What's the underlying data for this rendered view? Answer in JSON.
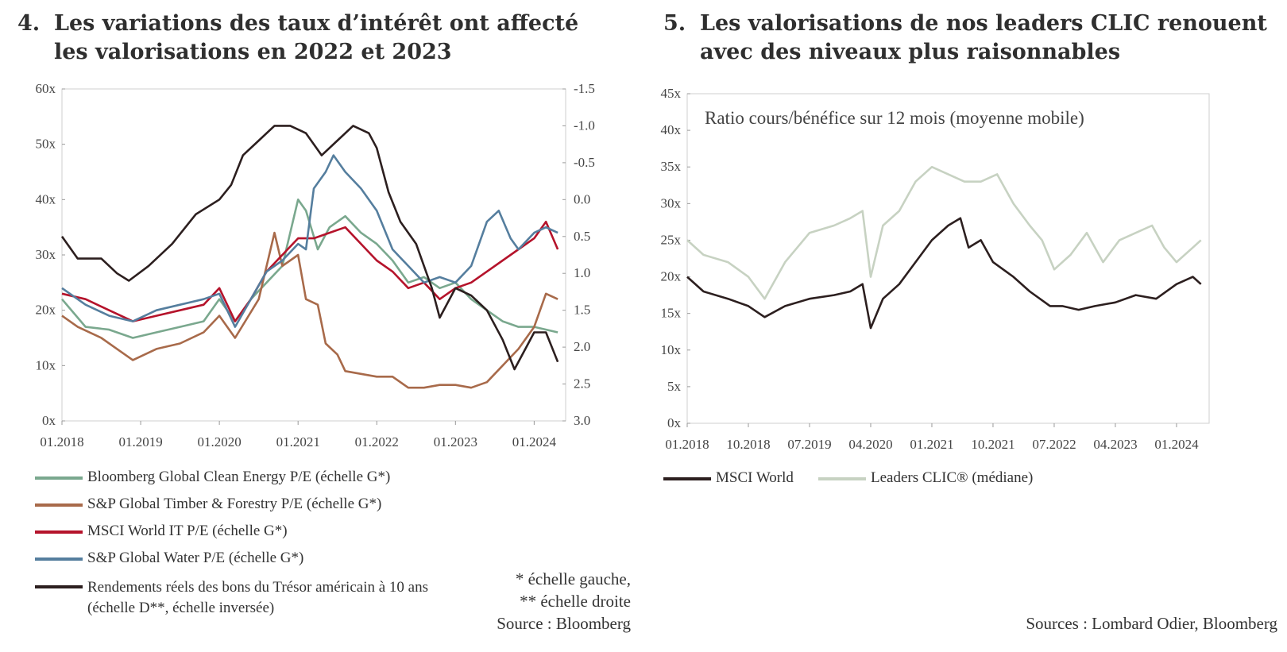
{
  "panel_left": {
    "number": "4.",
    "title_line1": "Les variations des taux d’intérêt ont affecté",
    "title_line2": "les valorisations en 2022 et 2023"
  },
  "panel_right": {
    "number": "5.",
    "title_line1": "Les valorisations de nos leaders CLIC renouent",
    "title_line2": "avec des niveaux plus raisonnables"
  },
  "notes": {
    "left_scale_note_1": "* échelle gauche,",
    "left_scale_note_2": "** échelle droite",
    "left_source": "Source : Bloomberg",
    "right_source": "Sources : Lombard Odier, Bloomberg"
  },
  "chart_data": [
    {
      "type": "line",
      "title": "Les variations des taux d’intérêt ont affecté les valorisations en 2022 et 2023",
      "x_ticks": [
        "01.2018",
        "01.2019",
        "01.2020",
        "01.2021",
        "01.2022",
        "01.2023",
        "01.2024"
      ],
      "x_range": [
        2018.0,
        2024.4
      ],
      "y_left": {
        "ticks": [
          "0x",
          "10x",
          "20x",
          "30x",
          "40x",
          "50x",
          "60x"
        ],
        "range": [
          0,
          60
        ]
      },
      "y_right": {
        "ticks": [
          "-1.5",
          "-1.0",
          "-0.5",
          "0.0",
          "0.5",
          "1.0",
          "1.5",
          "2.0",
          "2.5",
          "3.0"
        ],
        "range": [
          -1.5,
          3.0
        ],
        "inverted": true
      },
      "grid": false,
      "legend_position": "bottom",
      "series": [
        {
          "name": "Bloomberg Global Clean Energy P/E (échelle G*)",
          "axis": "left",
          "color": "#7aa88e",
          "points": [
            [
              2018.0,
              22
            ],
            [
              2018.3,
              17
            ],
            [
              2018.6,
              16.5
            ],
            [
              2018.9,
              15
            ],
            [
              2019.2,
              16
            ],
            [
              2019.5,
              17
            ],
            [
              2019.8,
              18
            ],
            [
              2020.0,
              22
            ],
            [
              2020.2,
              18
            ],
            [
              2020.4,
              22
            ],
            [
              2020.6,
              25
            ],
            [
              2020.8,
              28
            ],
            [
              2021.0,
              40
            ],
            [
              2021.1,
              38
            ],
            [
              2021.25,
              31
            ],
            [
              2021.4,
              35
            ],
            [
              2021.6,
              37
            ],
            [
              2021.8,
              34
            ],
            [
              2022.0,
              32
            ],
            [
              2022.2,
              29
            ],
            [
              2022.4,
              25
            ],
            [
              2022.6,
              26
            ],
            [
              2022.8,
              24
            ],
            [
              2023.0,
              25
            ],
            [
              2023.2,
              22
            ],
            [
              2023.4,
              20
            ],
            [
              2023.6,
              18
            ],
            [
              2023.8,
              17
            ],
            [
              2024.0,
              17
            ],
            [
              2024.3,
              16
            ]
          ]
        },
        {
          "name": "S&P Global Timber & Forestry P/E (échelle G*)",
          "axis": "left",
          "color": "#a86a4a",
          "points": [
            [
              2018.0,
              19
            ],
            [
              2018.2,
              17
            ],
            [
              2018.5,
              15
            ],
            [
              2018.7,
              13
            ],
            [
              2018.9,
              11
            ],
            [
              2019.2,
              13
            ],
            [
              2019.5,
              14
            ],
            [
              2019.8,
              16
            ],
            [
              2020.0,
              19
            ],
            [
              2020.2,
              15
            ],
            [
              2020.5,
              22
            ],
            [
              2020.7,
              34
            ],
            [
              2020.8,
              28
            ],
            [
              2021.0,
              30
            ],
            [
              2021.1,
              22
            ],
            [
              2021.25,
              21
            ],
            [
              2021.35,
              14
            ],
            [
              2021.5,
              12
            ],
            [
              2021.6,
              9
            ],
            [
              2021.8,
              8.5
            ],
            [
              2022.0,
              8
            ],
            [
              2022.2,
              8
            ],
            [
              2022.4,
              6
            ],
            [
              2022.6,
              6
            ],
            [
              2022.8,
              6.5
            ],
            [
              2023.0,
              6.5
            ],
            [
              2023.2,
              6
            ],
            [
              2023.4,
              7
            ],
            [
              2023.6,
              10
            ],
            [
              2023.8,
              13
            ],
            [
              2024.0,
              17
            ],
            [
              2024.15,
              23
            ],
            [
              2024.3,
              22
            ]
          ]
        },
        {
          "name": "MSCI World IT P/E (échelle G*)",
          "axis": "left",
          "color": "#b5132b",
          "points": [
            [
              2018.0,
              23
            ],
            [
              2018.3,
              22
            ],
            [
              2018.6,
              20
            ],
            [
              2018.9,
              18
            ],
            [
              2019.2,
              19
            ],
            [
              2019.5,
              20
            ],
            [
              2019.8,
              21
            ],
            [
              2020.0,
              24
            ],
            [
              2020.2,
              18
            ],
            [
              2020.4,
              22
            ],
            [
              2020.6,
              27
            ],
            [
              2020.8,
              30
            ],
            [
              2021.0,
              33
            ],
            [
              2021.2,
              33
            ],
            [
              2021.4,
              34
            ],
            [
              2021.6,
              35
            ],
            [
              2021.8,
              32
            ],
            [
              2022.0,
              29
            ],
            [
              2022.2,
              27
            ],
            [
              2022.4,
              24
            ],
            [
              2022.6,
              25
            ],
            [
              2022.8,
              22
            ],
            [
              2023.0,
              24
            ],
            [
              2023.2,
              25
            ],
            [
              2023.4,
              27
            ],
            [
              2023.6,
              29
            ],
            [
              2023.8,
              31
            ],
            [
              2024.0,
              33
            ],
            [
              2024.15,
              36
            ],
            [
              2024.3,
              31
            ]
          ]
        },
        {
          "name": "S&P Global Water P/E (échelle G*)",
          "axis": "left",
          "color": "#557e9e",
          "points": [
            [
              2018.0,
              24
            ],
            [
              2018.3,
              21
            ],
            [
              2018.6,
              19
            ],
            [
              2018.9,
              18
            ],
            [
              2019.2,
              20
            ],
            [
              2019.5,
              21
            ],
            [
              2019.8,
              22
            ],
            [
              2020.0,
              23
            ],
            [
              2020.2,
              17
            ],
            [
              2020.4,
              22
            ],
            [
              2020.6,
              27
            ],
            [
              2020.8,
              29
            ],
            [
              2021.0,
              32
            ],
            [
              2021.1,
              31
            ],
            [
              2021.2,
              42
            ],
            [
              2021.35,
              45
            ],
            [
              2021.45,
              48
            ],
            [
              2021.6,
              45
            ],
            [
              2021.8,
              42
            ],
            [
              2022.0,
              38
            ],
            [
              2022.2,
              31
            ],
            [
              2022.4,
              28
            ],
            [
              2022.6,
              25
            ],
            [
              2022.8,
              26
            ],
            [
              2023.0,
              25
            ],
            [
              2023.2,
              28
            ],
            [
              2023.4,
              36
            ],
            [
              2023.55,
              38
            ],
            [
              2023.7,
              33
            ],
            [
              2023.8,
              31
            ],
            [
              2024.0,
              34
            ],
            [
              2024.15,
              35
            ],
            [
              2024.3,
              34
            ]
          ]
        },
        {
          "name": "Rendements réels des bons du Trésor américain à 10 ans (échelle D**, échelle inversée)",
          "axis": "right",
          "color": "#2c1f1f",
          "points": [
            [
              2018.0,
              0.5
            ],
            [
              2018.2,
              0.8
            ],
            [
              2018.5,
              0.8
            ],
            [
              2018.7,
              1.0
            ],
            [
              2018.85,
              1.1
            ],
            [
              2019.1,
              0.9
            ],
            [
              2019.4,
              0.6
            ],
            [
              2019.7,
              0.2
            ],
            [
              2020.0,
              0.0
            ],
            [
              2020.15,
              -0.2
            ],
            [
              2020.3,
              -0.6
            ],
            [
              2020.5,
              -0.8
            ],
            [
              2020.7,
              -1.0
            ],
            [
              2020.9,
              -1.0
            ],
            [
              2021.1,
              -0.9
            ],
            [
              2021.3,
              -0.6
            ],
            [
              2021.5,
              -0.8
            ],
            [
              2021.7,
              -1.0
            ],
            [
              2021.9,
              -0.9
            ],
            [
              2022.0,
              -0.7
            ],
            [
              2022.15,
              -0.1
            ],
            [
              2022.3,
              0.3
            ],
            [
              2022.5,
              0.6
            ],
            [
              2022.7,
              1.2
            ],
            [
              2022.8,
              1.6
            ],
            [
              2023.0,
              1.2
            ],
            [
              2023.2,
              1.3
            ],
            [
              2023.4,
              1.5
            ],
            [
              2023.6,
              1.9
            ],
            [
              2023.75,
              2.3
            ],
            [
              2023.9,
              2.0
            ],
            [
              2024.0,
              1.8
            ],
            [
              2024.15,
              1.8
            ],
            [
              2024.3,
              2.2
            ]
          ]
        }
      ]
    },
    {
      "type": "line",
      "title": "Les valorisations de nos leaders CLIC renouent avec des niveaux plus raisonnables",
      "annotation": "Ratio cours/bénéfice sur 12 mois (moyenne mobile)",
      "x_ticks": [
        "01.2018",
        "10.2018",
        "07.2019",
        "04.2020",
        "01.2021",
        "10.2021",
        "07.2022",
        "04.2023",
        "01.2024"
      ],
      "x_range": [
        2018.0,
        2024.4
      ],
      "y": {
        "ticks": [
          "0x",
          "5x",
          "10x",
          "15x",
          "20x",
          "25x",
          "30x",
          "35x",
          "40x",
          "45x"
        ],
        "range": [
          0,
          45
        ]
      },
      "grid": false,
      "legend_position": "bottom",
      "series": [
        {
          "name": "MSCI World",
          "color": "#2c1f1f",
          "points": [
            [
              2018.0,
              20
            ],
            [
              2018.2,
              18
            ],
            [
              2018.5,
              17
            ],
            [
              2018.75,
              16
            ],
            [
              2018.95,
              14.5
            ],
            [
              2019.2,
              16
            ],
            [
              2019.5,
              17
            ],
            [
              2019.8,
              17.5
            ],
            [
              2020.0,
              18
            ],
            [
              2020.15,
              19
            ],
            [
              2020.25,
              13
            ],
            [
              2020.4,
              17
            ],
            [
              2020.6,
              19
            ],
            [
              2020.8,
              22
            ],
            [
              2021.0,
              25
            ],
            [
              2021.2,
              27
            ],
            [
              2021.35,
              28
            ],
            [
              2021.45,
              24
            ],
            [
              2021.6,
              25
            ],
            [
              2021.75,
              22
            ],
            [
              2022.0,
              20
            ],
            [
              2022.2,
              18
            ],
            [
              2022.45,
              16
            ],
            [
              2022.6,
              16
            ],
            [
              2022.8,
              15.5
            ],
            [
              2023.0,
              16
            ],
            [
              2023.25,
              16.5
            ],
            [
              2023.5,
              17.5
            ],
            [
              2023.75,
              17
            ],
            [
              2024.0,
              19
            ],
            [
              2024.2,
              20
            ],
            [
              2024.3,
              19
            ]
          ]
        },
        {
          "name": "Leaders CLIC® (médiane)",
          "color": "#c7d2c2",
          "points": [
            [
              2018.0,
              25
            ],
            [
              2018.2,
              23
            ],
            [
              2018.5,
              22
            ],
            [
              2018.75,
              20
            ],
            [
              2018.95,
              17
            ],
            [
              2019.2,
              22
            ],
            [
              2019.5,
              26
            ],
            [
              2019.8,
              27
            ],
            [
              2020.0,
              28
            ],
            [
              2020.15,
              29
            ],
            [
              2020.25,
              20
            ],
            [
              2020.4,
              27
            ],
            [
              2020.6,
              29
            ],
            [
              2020.8,
              33
            ],
            [
              2021.0,
              35
            ],
            [
              2021.2,
              34
            ],
            [
              2021.4,
              33
            ],
            [
              2021.6,
              33
            ],
            [
              2021.8,
              34
            ],
            [
              2022.0,
              30
            ],
            [
              2022.2,
              27
            ],
            [
              2022.35,
              25
            ],
            [
              2022.5,
              21
            ],
            [
              2022.7,
              23
            ],
            [
              2022.9,
              26
            ],
            [
              2023.1,
              22
            ],
            [
              2023.3,
              25
            ],
            [
              2023.5,
              26
            ],
            [
              2023.7,
              27
            ],
            [
              2023.85,
              24
            ],
            [
              2024.0,
              22
            ],
            [
              2024.2,
              24
            ],
            [
              2024.3,
              25
            ]
          ]
        }
      ]
    }
  ]
}
